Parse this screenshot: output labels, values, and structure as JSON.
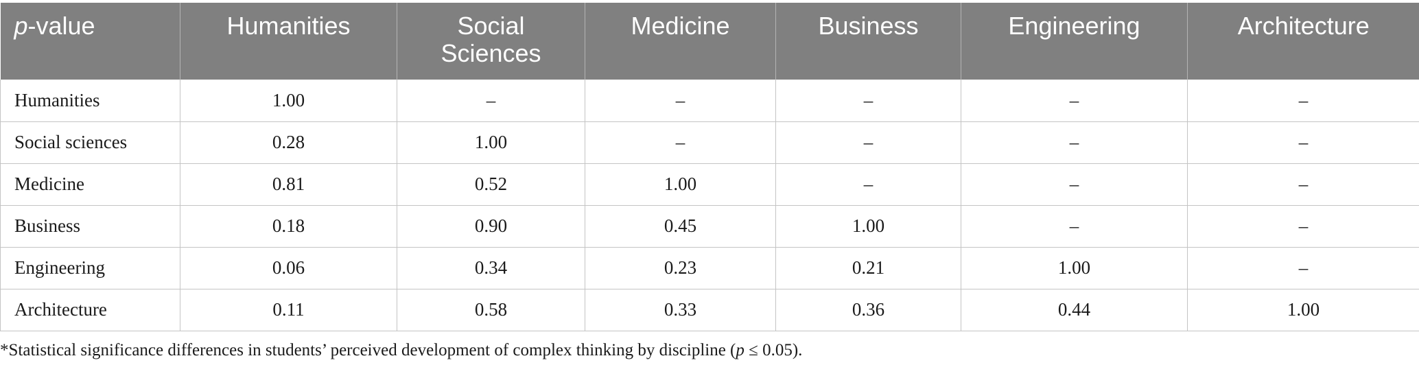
{
  "table": {
    "corner_header": {
      "italic_part": "p",
      "rest": "-value"
    },
    "columns": [
      "Humanities",
      "Social Sciences",
      "Medicine",
      "Business",
      "Engineering",
      "Architecture"
    ],
    "rows": [
      {
        "label": "Humanities",
        "values": [
          "1.00",
          "–",
          "–",
          "–",
          "–",
          "–"
        ]
      },
      {
        "label": "Social sciences",
        "values": [
          "0.28",
          "1.00",
          "–",
          "–",
          "–",
          "–"
        ]
      },
      {
        "label": "Medicine",
        "values": [
          "0.81",
          "0.52",
          "1.00",
          "–",
          "–",
          "–"
        ]
      },
      {
        "label": "Business",
        "values": [
          "0.18",
          "0.90",
          "0.45",
          "1.00",
          "–",
          "–"
        ]
      },
      {
        "label": "Engineering",
        "values": [
          "0.06",
          "0.34",
          "0.23",
          "0.21",
          "1.00",
          "–"
        ]
      },
      {
        "label": "Architecture",
        "values": [
          "0.11",
          "0.58",
          "0.33",
          "0.36",
          "0.44",
          "1.00"
        ]
      }
    ]
  },
  "footnote": {
    "text_before": "*Statistical significance differences in students’ perceived development of complex thinking by discipline (",
    "italic_p": "p",
    "text_after": " ≤ 0.05)."
  }
}
